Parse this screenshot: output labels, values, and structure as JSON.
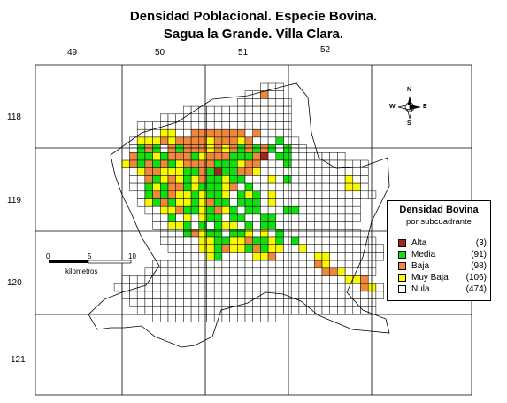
{
  "title": {
    "line1": "Densidad Poblacional. Especie Bovina.",
    "line2": "Sagua la Grande. Villa Clara."
  },
  "grid_labels": {
    "top": [
      "49",
      "50",
      "51",
      "52"
    ],
    "left": [
      "118",
      "119",
      "120",
      "121"
    ]
  },
  "compass": {
    "n": "N",
    "s": "S",
    "e": "E",
    "w": "W"
  },
  "scale": {
    "zero": "0",
    "mid": "5",
    "end": "10",
    "unit": "kilometros"
  },
  "legend": {
    "title": "Densidad Bovina",
    "subtitle": "por subcuadrante",
    "items": [
      {
        "label": "Alta",
        "count": "(3)",
        "color": "#a0281c"
      },
      {
        "label": "Media",
        "count": "(91)",
        "color": "#10e010"
      },
      {
        "label": "Baja",
        "count": "(98)",
        "color": "#f0883c"
      },
      {
        "label": "Muy Baja",
        "count": "(106)",
        "color": "#f8f800"
      },
      {
        "label": "Nula",
        "count": "(474)",
        "color": "#ffffff"
      }
    ]
  },
  "map_grid": {
    "rows": [
      {
        "r": 0,
        "cells": "0000000000000000000000ccc0000000000000"
      },
      {
        "r": 1,
        "cells": "00000000000000000000ccbcc0000000000000"
      },
      {
        "r": 2,
        "cells": "0000000000000000000ccccccc000000000000"
      },
      {
        "r": 3,
        "cells": "000000000000cccccccccccccc000000000000"
      },
      {
        "r": 4,
        "cells": "000000000ccccccccccccccccc000000000000"
      },
      {
        "r": 5,
        "cells": "000000cccccccccccccccccccc000000000000"
      },
      {
        "r": 6,
        "cells": "000000cccyycdbbbbbbbcbcccc000000000000"
      },
      {
        "r": 7,
        "cells": "00000cyyybybbbbybbbybdccmcc00000000000"
      },
      {
        "r": 8,
        "cells": "00000cmbmcbmbbbybybmbmbmcmcc0000000000"
      },
      {
        "r": 9,
        "cells": "00000bmmymbbbmybbbmmmbacmmccccccc00000"
      },
      {
        "r": 10,
        "cells": "0000ybmbmbmybbbbmmmybbcccmcccccccccc00"
      },
      {
        "r": 11,
        "cells": "00000cybbyyymmbmammbbycccccccccccccc000"
      },
      {
        "r": 12,
        "cells": "00000ccbmybymybmmymmcccycmcccccccycc00"
      },
      {
        "r": 13,
        "cells": "00000ccmymbbmymmmybcmccccccccccccyyc00"
      },
      {
        "r": 14,
        "cells": "000000cmbmbyymymmycmymcyccccccccccccc0"
      },
      {
        "r": 15,
        "cells": "000000cymbmyymybmmcmmmcyccccccccccc000"
      },
      {
        "r": 16,
        "cells": "0000000ccyybmmymbymcmmcccmmcccccccc000"
      },
      {
        "r": 17,
        "cells": "00000000ccmcycymmcmmccmmccccccccccc000"
      },
      {
        "r": 18,
        "cells": "00000000ccyymcmcmyycmcmmcccccccccc0000"
      },
      {
        "r": 19,
        "cells": "000000000cccmbymmcmmycycmcccccccccc000"
      },
      {
        "r": 20,
        "cells": "000000000cccccyymmyybmmymcmcccccccccc0"
      },
      {
        "r": 21,
        "cells": "0000000000ccccyymbyymbmyyccycccccccccc"
      },
      {
        "r": 22,
        "cells": "00000000000ccccymccccyybcccccyyccccccc"
      },
      {
        "r": 23,
        "cells": "00000000cccccccccccccccccccccbycccccc0"
      },
      {
        "r": 24,
        "cells": "0000000cccccccccccccccccccccccbbycccc0"
      },
      {
        "r": 25,
        "cells": "0000cccccccccccccccccccccccccccccyyb00"
      },
      {
        "r": 26,
        "cells": "000ccccccccccccccccccccccccccccccccbyc"
      },
      {
        "r": 27,
        "cells": "0000cccccccccccccccccccccccccccccccccc"
      },
      {
        "r": 28,
        "cells": "00000cccccccccccccccccccccccccccccccc0"
      },
      {
        "r": 29,
        "cells": "000000ccccccccccccccccccccccccccccccc0"
      },
      {
        "r": 30,
        "cells": "00000000cccccccccccccccc00000000000000"
      }
    ]
  }
}
